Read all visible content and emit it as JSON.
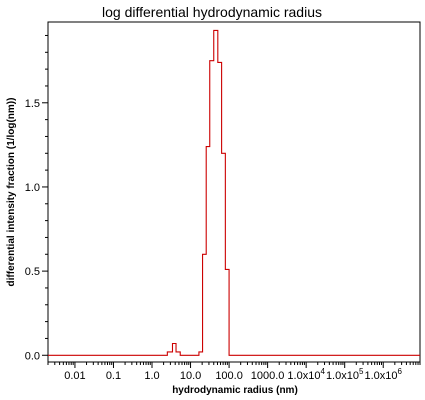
{
  "chart_data": {
    "type": "line",
    "title": "log differential hydrodynamic radius",
    "xlabel": "hydrodynamic radius (nm)",
    "ylabel": "differential intensity fraction (1/log(nm))",
    "x_scale": "log",
    "xlim": [
      0.002,
      9000000
    ],
    "ylim": [
      -0.04,
      1.98
    ],
    "grid": false,
    "legend": "none",
    "line_color": "#cc0000",
    "x_ticks": [
      {
        "value": 0.01,
        "label": "0.01"
      },
      {
        "value": 0.1,
        "label": "0.1"
      },
      {
        "value": 1,
        "label": "1.0"
      },
      {
        "value": 10,
        "label": "10.0"
      },
      {
        "value": 100,
        "label": "100.0"
      },
      {
        "value": 1000,
        "label": "1000.0"
      },
      {
        "value": 10000,
        "base": "1.0x10",
        "exp": "4"
      },
      {
        "value": 100000,
        "base": "1.0x10",
        "exp": "5"
      },
      {
        "value": 1000000,
        "base": "1.0x10",
        "exp": "6"
      }
    ],
    "y_ticks": [
      {
        "value": 0.0,
        "label": "0.0"
      },
      {
        "value": 0.5,
        "label": "0.5"
      },
      {
        "value": 1.0,
        "label": "1.0"
      },
      {
        "value": 1.5,
        "label": "1.5"
      }
    ],
    "series": [
      {
        "steps": [
          {
            "x0": 0.002,
            "x1": 2.5,
            "y": 0.0
          },
          {
            "x0": 2.5,
            "x1": 3.4,
            "y": 0.02
          },
          {
            "x0": 3.4,
            "x1": 4.2,
            "y": 0.07
          },
          {
            "x0": 4.2,
            "x1": 5.4,
            "y": 0.02
          },
          {
            "x0": 5.4,
            "x1": 16.5,
            "y": 0.0
          },
          {
            "x0": 16.5,
            "x1": 20.5,
            "y": 0.02
          },
          {
            "x0": 20.5,
            "x1": 25.5,
            "y": 0.6
          },
          {
            "x0": 25.5,
            "x1": 31.5,
            "y": 1.24
          },
          {
            "x0": 31.5,
            "x1": 40.0,
            "y": 1.75
          },
          {
            "x0": 40.0,
            "x1": 51.0,
            "y": 1.93
          },
          {
            "x0": 51.0,
            "x1": 64.0,
            "y": 1.74
          },
          {
            "x0": 64.0,
            "x1": 80.0,
            "y": 1.2
          },
          {
            "x0": 80.0,
            "x1": 100.0,
            "y": 0.51
          },
          {
            "x0": 100.0,
            "x1": 9000000,
            "y": 0.0
          }
        ]
      }
    ]
  }
}
